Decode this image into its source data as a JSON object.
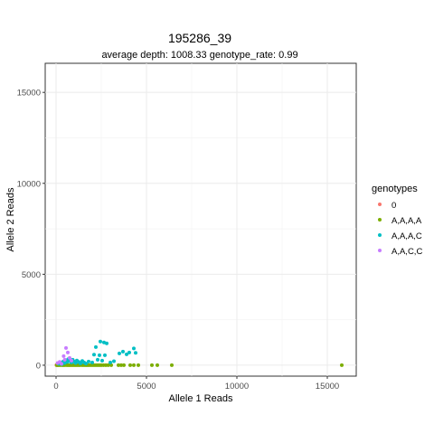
{
  "chart_data": {
    "type": "scatter",
    "title": "195286_39",
    "subtitle": "average depth:  1008.33  genotype_rate:  0.99",
    "xlabel": "Allele 1 Reads",
    "ylabel": "Allele 2 Reads",
    "xlim": [
      -600,
      16600
    ],
    "ylim": [
      -600,
      16600
    ],
    "x_ticks": [
      0,
      5000,
      10000,
      15000
    ],
    "y_ticks": [
      0,
      5000,
      10000,
      15000
    ],
    "x_tick_labels": [
      "0",
      "5000",
      "10000",
      "15000"
    ],
    "y_tick_labels": [
      "0",
      "5000",
      "10000",
      "15000"
    ],
    "grid": true,
    "legend": {
      "title": "genotypes",
      "placement": "right"
    },
    "series": [
      {
        "name": "0",
        "color": "#F8766D",
        "points": [
          [
            20,
            10
          ],
          [
            60,
            30
          ],
          [
            100,
            5
          ]
        ]
      },
      {
        "name": "A,A,A,A",
        "color": "#7CAE00",
        "points": [
          [
            40,
            0
          ],
          [
            120,
            5
          ],
          [
            200,
            0
          ],
          [
            260,
            10
          ],
          [
            330,
            0
          ],
          [
            400,
            5
          ],
          [
            470,
            0
          ],
          [
            540,
            10
          ],
          [
            610,
            0
          ],
          [
            680,
            5
          ],
          [
            750,
            0
          ],
          [
            820,
            0
          ],
          [
            900,
            5
          ],
          [
            980,
            0
          ],
          [
            1060,
            0
          ],
          [
            1140,
            5
          ],
          [
            1220,
            0
          ],
          [
            1300,
            0
          ],
          [
            1380,
            10
          ],
          [
            1460,
            0
          ],
          [
            1550,
            0
          ],
          [
            1640,
            5
          ],
          [
            1720,
            0
          ],
          [
            1800,
            0
          ],
          [
            1900,
            0
          ],
          [
            2000,
            5
          ],
          [
            2100,
            0
          ],
          [
            2200,
            0
          ],
          [
            2300,
            0
          ],
          [
            2400,
            5
          ],
          [
            2500,
            0
          ],
          [
            2620,
            0
          ],
          [
            2750,
            0
          ],
          [
            2880,
            0
          ],
          [
            3050,
            0
          ],
          [
            3450,
            0
          ],
          [
            3600,
            0
          ],
          [
            3750,
            0
          ],
          [
            4100,
            0
          ],
          [
            4300,
            0
          ],
          [
            4550,
            0
          ],
          [
            5300,
            0
          ],
          [
            5600,
            0
          ],
          [
            6400,
            0
          ],
          [
            15800,
            0
          ]
        ]
      },
      {
        "name": "A,A,A,C",
        "color": "#00BFC4",
        "points": [
          [
            150,
            80
          ],
          [
            250,
            150
          ],
          [
            320,
            60
          ],
          [
            400,
            200
          ],
          [
            480,
            120
          ],
          [
            550,
            280
          ],
          [
            620,
            180
          ],
          [
            700,
            350
          ],
          [
            780,
            220
          ],
          [
            850,
            150
          ],
          [
            920,
            300
          ],
          [
            1000,
            200
          ],
          [
            1080,
            120
          ],
          [
            1150,
            260
          ],
          [
            1250,
            180
          ],
          [
            1350,
            100
          ],
          [
            1450,
            230
          ],
          [
            1550,
            150
          ],
          [
            1650,
            90
          ],
          [
            1800,
            200
          ],
          [
            2000,
            150
          ],
          [
            2100,
            580
          ],
          [
            2200,
            1000
          ],
          [
            2300,
            300
          ],
          [
            2400,
            550
          ],
          [
            2450,
            1300
          ],
          [
            2550,
            250
          ],
          [
            2650,
            1250
          ],
          [
            2700,
            550
          ],
          [
            2800,
            1200
          ],
          [
            3000,
            150
          ],
          [
            3200,
            220
          ],
          [
            3500,
            650
          ],
          [
            3700,
            750
          ],
          [
            3900,
            600
          ],
          [
            4050,
            700
          ],
          [
            4300,
            920
          ],
          [
            4400,
            680
          ]
        ]
      },
      {
        "name": "A,A,C,C",
        "color": "#C77CFF",
        "points": [
          [
            80,
            120
          ],
          [
            200,
            180
          ],
          [
            300,
            80
          ],
          [
            420,
            500
          ],
          [
            480,
            300
          ],
          [
            550,
            950
          ],
          [
            650,
            700
          ],
          [
            750,
            400
          ],
          [
            850,
            250
          ]
        ]
      }
    ]
  }
}
